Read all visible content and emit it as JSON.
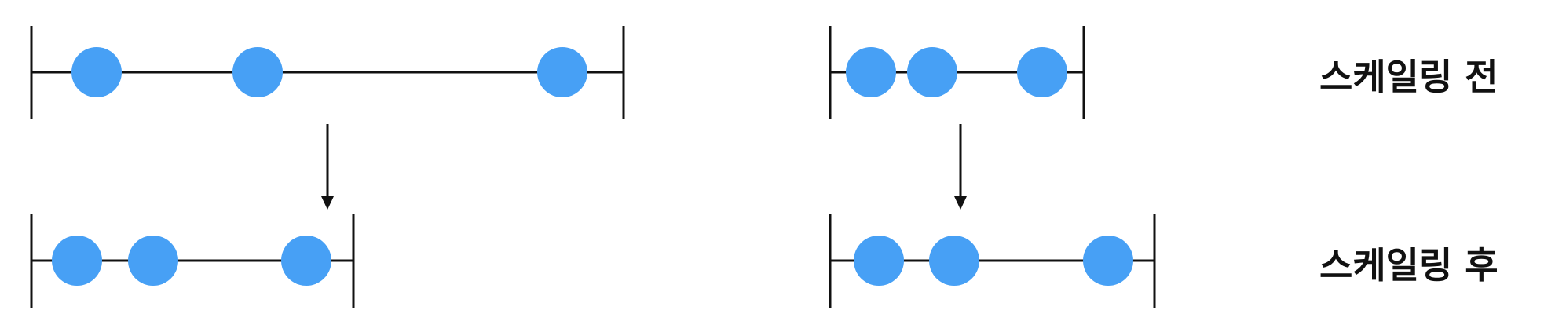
{
  "labels": {
    "before": "스케일링 전",
    "after": "스케일링 후"
  },
  "colors": {
    "point": "#47a0f5",
    "line": "#111111"
  }
}
